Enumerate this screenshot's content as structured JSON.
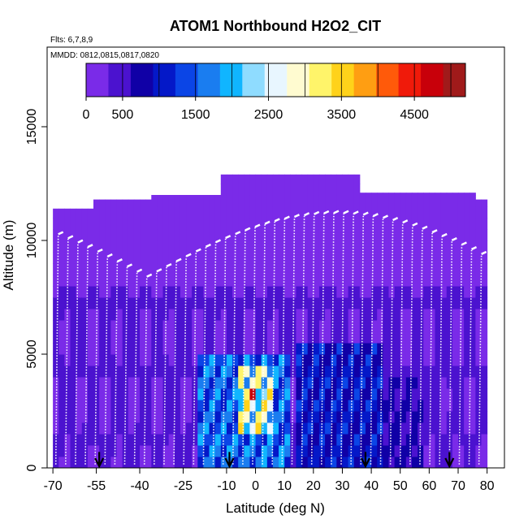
{
  "chart_data": {
    "type": "heatmap",
    "title": "ATOM1 Northbound H2O2_CIT",
    "flights_note": "Flts: 6,7,8,9",
    "dates_note": "MMDD: 0812,0815,0817,0820",
    "xlabel": "Latitude (deg N)",
    "ylabel": "Altitude (m)",
    "xlim": [
      -72,
      86
    ],
    "ylim": [
      0,
      18500
    ],
    "x_ticks": [
      -70,
      -55,
      -40,
      -25,
      -10,
      0,
      10,
      20,
      30,
      40,
      50,
      60,
      70,
      80
    ],
    "x_tick_labels": [
      "-70",
      "-55",
      "-40",
      "-25",
      "-10",
      "0",
      "10",
      "20",
      "30",
      "40",
      "50",
      "60",
      "70",
      "80"
    ],
    "y_ticks": [
      0,
      5000,
      10000,
      15000
    ],
    "y_tick_labels": [
      "0",
      "5000",
      "10000",
      "15000"
    ],
    "colorbar": {
      "range": [
        0,
        5200
      ],
      "tick_values": [
        0,
        500,
        1500,
        2500,
        3500,
        4500
      ],
      "tick_labels": [
        "0",
        "500",
        "1500",
        "2500",
        "3500",
        "4500"
      ],
      "colors": [
        "#7a2be8",
        "#4b12cf",
        "#1000a6",
        "#0418c8",
        "#0b45e6",
        "#1a7df0",
        "#10b5ff",
        "#8fdcff",
        "#e8f6ff",
        "#fffbd0",
        "#fff46a",
        "#ffd21a",
        "#ff9e12",
        "#ff5a0a",
        "#f01a0a",
        "#c8000a",
        "#a01a1a"
      ]
    },
    "landing_markers_lat": [
      -54,
      -9,
      38,
      67
    ],
    "altitude_band_top": [
      {
        "lat_start": -70,
        "lat_end": -57,
        "alt_top": 11400
      },
      {
        "lat_start": -57,
        "lat_end": -36,
        "alt_top": 11800
      },
      {
        "lat_start": -36,
        "lat_end": -12,
        "alt_top": 12000
      },
      {
        "lat_start": -12,
        "lat_end": 36,
        "alt_top": 12900
      },
      {
        "lat_start": 36,
        "lat_end": 75,
        "alt_top": 12100
      },
      {
        "lat_start": 75,
        "lat_end": 80,
        "alt_top": 11800
      }
    ],
    "enhanced_regions": [
      {
        "lat_start": -20,
        "lat_end": 12,
        "alt_start": 0,
        "alt_end": 5000,
        "value": 2000
      },
      {
        "lat_start": -6,
        "lat_end": 6,
        "alt_start": 1500,
        "alt_end": 4500,
        "value": 3500
      },
      {
        "lat_start": -3,
        "lat_end": 0,
        "alt_start": 2900,
        "alt_end": 3400,
        "value": 4800
      },
      {
        "lat_start": 14,
        "lat_end": 45,
        "alt_start": 0,
        "alt_end": 5500,
        "value": 1300
      },
      {
        "lat_start": 45,
        "lat_end": 58,
        "alt_start": 0,
        "alt_end": 4000,
        "value": 900
      }
    ]
  }
}
